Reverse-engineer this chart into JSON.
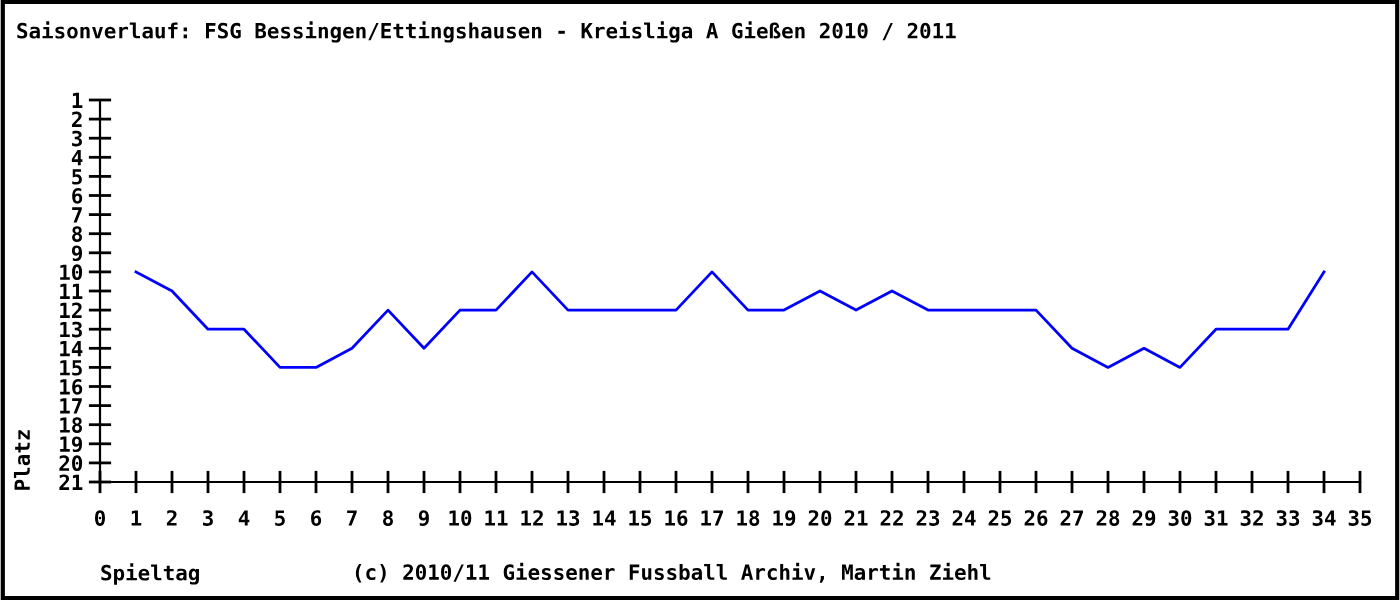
{
  "chart_data": {
    "type": "line",
    "title": "Saisonverlauf: FSG Bessingen/Ettingshausen - Kreisliga A Gießen 2010 / 2011",
    "xlabel": "Spieltag",
    "ylabel": "Platz",
    "annotations": [
      "(c) 2010/11 Giessener Fussball Archiv, Martin Ziehl"
    ],
    "x": [
      1,
      2,
      3,
      4,
      5,
      6,
      7,
      8,
      9,
      10,
      11,
      12,
      13,
      14,
      15,
      16,
      17,
      18,
      19,
      20,
      21,
      22,
      23,
      24,
      25,
      26,
      27,
      28,
      29,
      30,
      31,
      32,
      33,
      34
    ],
    "series": [
      {
        "color": "#0000ff",
        "values": [
          10,
          11,
          13,
          13,
          15,
          15,
          14,
          12,
          14,
          12,
          12,
          10,
          12,
          12,
          12,
          12,
          10,
          12,
          12,
          11,
          12,
          11,
          12,
          12,
          12,
          12,
          14,
          15,
          14,
          15,
          13,
          13,
          13,
          10
        ]
      }
    ],
    "xlim": [
      0,
      35
    ],
    "ylim": [
      21,
      1
    ],
    "xticks": [
      0,
      1,
      2,
      3,
      4,
      5,
      6,
      7,
      8,
      9,
      10,
      11,
      12,
      13,
      14,
      15,
      16,
      17,
      18,
      19,
      20,
      21,
      22,
      23,
      24,
      25,
      26,
      27,
      28,
      29,
      30,
      31,
      32,
      33,
      34,
      35
    ],
    "yticks": [
      1,
      2,
      3,
      4,
      5,
      6,
      7,
      8,
      9,
      10,
      11,
      12,
      13,
      14,
      15,
      16,
      17,
      18,
      19,
      20,
      21
    ],
    "grid": false,
    "legend": false,
    "marker": "none",
    "line_style": "solid"
  }
}
